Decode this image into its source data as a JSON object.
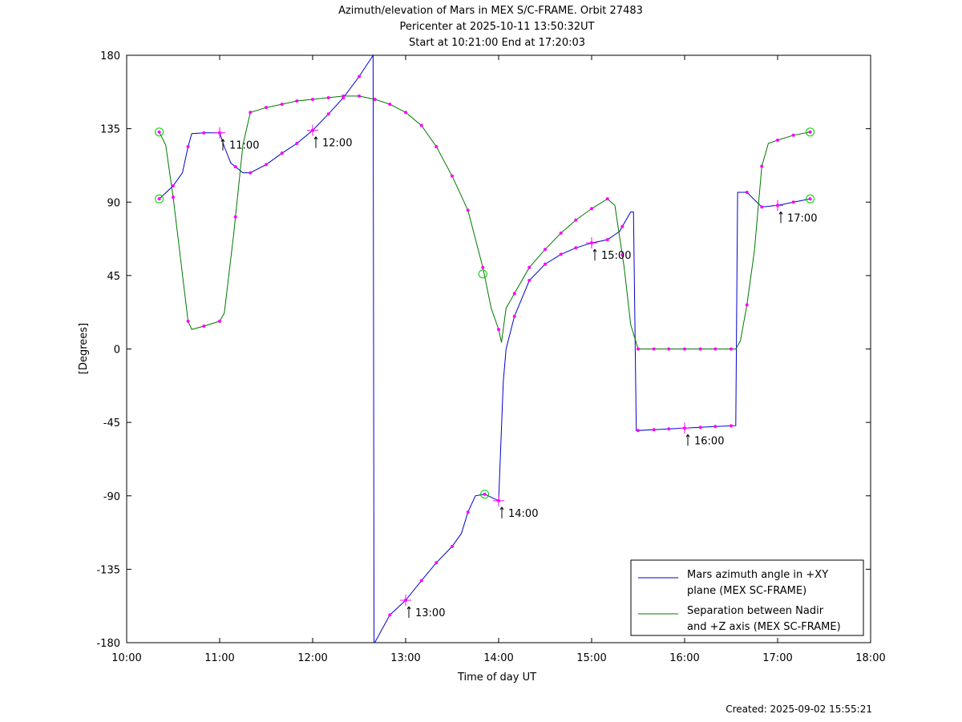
{
  "chart_data": {
    "type": "line",
    "title_lines": [
      "Azimuth/elevation of Mars in MEX S/C-FRAME.  Orbit 27483",
      "Pericenter at 2025-10-11 13:50:32UT",
      "Start at 10:21:00 End at 17:20:03"
    ],
    "xlabel": "Time of day UT",
    "ylabel": "[Degrees]",
    "footer": "Created: 2025-09-02 15:55:21",
    "xlim": [
      10,
      18
    ],
    "ylim": [
      -180,
      180
    ],
    "x_ticks": [
      {
        "v": 10,
        "label": "10:00"
      },
      {
        "v": 11,
        "label": "11:00"
      },
      {
        "v": 12,
        "label": "12:00"
      },
      {
        "v": 13,
        "label": "13:00"
      },
      {
        "v": 14,
        "label": "14:00"
      },
      {
        "v": 15,
        "label": "15:00"
      },
      {
        "v": 16,
        "label": "16:00"
      },
      {
        "v": 17,
        "label": "17:00"
      },
      {
        "v": 18,
        "label": "18:00"
      }
    ],
    "y_ticks": [
      {
        "v": 180,
        "label": "180"
      },
      {
        "v": 135,
        "label": "135"
      },
      {
        "v": 90,
        "label": "90"
      },
      {
        "v": 45,
        "label": "45"
      },
      {
        "v": 0,
        "label": "0"
      },
      {
        "v": -45,
        "label": "-45"
      },
      {
        "v": -90,
        "label": "-90"
      },
      {
        "v": -135,
        "label": "-135"
      },
      {
        "v": -180,
        "label": "-180"
      }
    ],
    "legend_position": "bottom-right",
    "series": [
      {
        "name": "Mars azimuth angle in +XY plane (MEX SC-FRAME)",
        "legend_lines": [
          "Mars azimuth angle in +XY",
          "plane (MEX SC-FRAME)"
        ],
        "color": "#0000cc",
        "points": [
          [
            10.35,
            92
          ],
          [
            10.5,
            100
          ],
          [
            10.6,
            108
          ],
          [
            10.66,
            124
          ],
          [
            10.7,
            132
          ],
          [
            10.85,
            132.5
          ],
          [
            11.0,
            132.5
          ],
          [
            11.05,
            124
          ],
          [
            11.12,
            114
          ],
          [
            11.25,
            108
          ],
          [
            11.33,
            108
          ],
          [
            11.5,
            113
          ],
          [
            11.67,
            120
          ],
          [
            11.83,
            126
          ],
          [
            12.0,
            134
          ],
          [
            12.17,
            144
          ],
          [
            12.33,
            154
          ],
          [
            12.5,
            167
          ],
          [
            12.65,
            180
          ],
          [
            12.65,
            180
          ],
          [
            12.66,
            -180
          ],
          [
            12.667,
            -180
          ],
          [
            12.83,
            -163
          ],
          [
            13.0,
            -154
          ],
          [
            13.17,
            -142
          ],
          [
            13.33,
            -131
          ],
          [
            13.5,
            -121
          ],
          [
            13.6,
            -113
          ],
          [
            13.67,
            -100
          ],
          [
            13.75,
            -90
          ],
          [
            13.85,
            -89
          ],
          [
            14.0,
            -93
          ],
          [
            14.05,
            -20
          ],
          [
            14.08,
            0
          ],
          [
            14.17,
            20
          ],
          [
            14.33,
            42
          ],
          [
            14.5,
            52
          ],
          [
            14.67,
            58
          ],
          [
            14.83,
            62
          ],
          [
            15.0,
            65
          ],
          [
            15.17,
            67
          ],
          [
            15.3,
            72
          ],
          [
            15.42,
            84
          ],
          [
            15.45,
            84
          ],
          [
            15.48,
            -50
          ],
          [
            15.67,
            -49.5
          ],
          [
            15.83,
            -49
          ],
          [
            16.0,
            -48.5
          ],
          [
            16.17,
            -48
          ],
          [
            16.33,
            -47.5
          ],
          [
            16.55,
            -47
          ],
          [
            16.57,
            96
          ],
          [
            16.67,
            96
          ],
          [
            16.83,
            87
          ],
          [
            17.0,
            88
          ],
          [
            17.17,
            90
          ],
          [
            17.35,
            92
          ]
        ],
        "markers": [
          10.35,
          10.5,
          10.66,
          10.83,
          11.0,
          11.17,
          11.33,
          11.5,
          11.67,
          11.83,
          12.0,
          12.17,
          12.33,
          12.5,
          12.83,
          13.0,
          13.17,
          13.33,
          13.5,
          13.67,
          13.85,
          14.0,
          14.17,
          14.33,
          14.5,
          14.67,
          14.83,
          15.0,
          15.17,
          15.33,
          15.5,
          15.67,
          15.83,
          16.0,
          16.17,
          16.33,
          16.5,
          16.67,
          16.83,
          17.0,
          17.17,
          17.35
        ]
      },
      {
        "name": "Separation between Nadir and +Z axis (MEX SC-FRAME)",
        "legend_lines": [
          "Separation between Nadir",
          "and +Z axis (MEX SC-FRAME)"
        ],
        "color": "#007700",
        "points": [
          [
            10.35,
            133
          ],
          [
            10.42,
            125
          ],
          [
            10.5,
            93
          ],
          [
            10.58,
            55
          ],
          [
            10.66,
            17
          ],
          [
            10.7,
            12
          ],
          [
            10.83,
            14
          ],
          [
            11.0,
            17
          ],
          [
            11.05,
            22
          ],
          [
            11.15,
            70
          ],
          [
            11.25,
            125
          ],
          [
            11.33,
            145
          ],
          [
            11.5,
            148
          ],
          [
            11.67,
            150
          ],
          [
            11.83,
            152
          ],
          [
            12.0,
            153
          ],
          [
            12.17,
            154
          ],
          [
            12.33,
            155
          ],
          [
            12.5,
            155
          ],
          [
            12.67,
            153
          ],
          [
            12.83,
            150
          ],
          [
            13.0,
            145
          ],
          [
            13.17,
            137
          ],
          [
            13.33,
            124
          ],
          [
            13.5,
            106
          ],
          [
            13.67,
            85
          ],
          [
            13.83,
            50
          ],
          [
            13.92,
            25
          ],
          [
            14.0,
            12
          ],
          [
            14.03,
            4
          ],
          [
            14.08,
            25
          ],
          [
            14.17,
            34
          ],
          [
            14.33,
            50
          ],
          [
            14.5,
            61
          ],
          [
            14.67,
            71
          ],
          [
            14.83,
            79
          ],
          [
            15.0,
            86
          ],
          [
            15.17,
            92
          ],
          [
            15.25,
            88
          ],
          [
            15.35,
            50
          ],
          [
            15.42,
            15
          ],
          [
            15.5,
            0
          ],
          [
            15.67,
            0
          ],
          [
            16.0,
            0
          ],
          [
            16.33,
            0
          ],
          [
            16.55,
            0
          ],
          [
            16.6,
            5
          ],
          [
            16.67,
            27
          ],
          [
            16.75,
            60
          ],
          [
            16.83,
            112
          ],
          [
            16.9,
            126
          ],
          [
            17.0,
            128
          ],
          [
            17.17,
            131
          ],
          [
            17.35,
            133
          ]
        ],
        "markers": [
          10.35,
          10.5,
          10.66,
          10.83,
          11.0,
          11.17,
          11.33,
          11.5,
          11.67,
          11.83,
          12.0,
          12.17,
          12.33,
          12.5,
          12.67,
          12.83,
          13.0,
          13.17,
          13.33,
          13.5,
          13.67,
          13.83,
          14.0,
          14.17,
          14.33,
          14.5,
          14.67,
          14.83,
          15.0,
          15.17,
          15.33,
          15.5,
          15.67,
          15.83,
          16.0,
          16.17,
          16.33,
          16.5,
          16.67,
          16.83,
          17.0,
          17.17,
          17.35
        ]
      }
    ],
    "hour_markers": [
      {
        "x": 11.0,
        "series": 0,
        "label": "11:00"
      },
      {
        "x": 12.0,
        "series": 0,
        "label": "12:00"
      },
      {
        "x": 13.0,
        "series": 0,
        "label": "13:00"
      },
      {
        "x": 14.0,
        "series": 0,
        "label": "14:00"
      },
      {
        "x": 15.0,
        "series": 0,
        "label": "15:00"
      },
      {
        "x": 16.0,
        "series": 0,
        "label": "16:00"
      },
      {
        "x": 17.0,
        "series": 0,
        "label": "17:00"
      }
    ],
    "circle_markers": [
      {
        "x": 10.35,
        "y": 133
      },
      {
        "x": 10.35,
        "y": 92
      },
      {
        "x": 13.83,
        "y": 46
      },
      {
        "x": 13.85,
        "y": -89
      },
      {
        "x": 17.35,
        "y": 133
      },
      {
        "x": 17.35,
        "y": 92
      }
    ],
    "colors": {
      "marker": "#ff00ff",
      "circle": "#00cc00",
      "axis": "#000000"
    }
  }
}
